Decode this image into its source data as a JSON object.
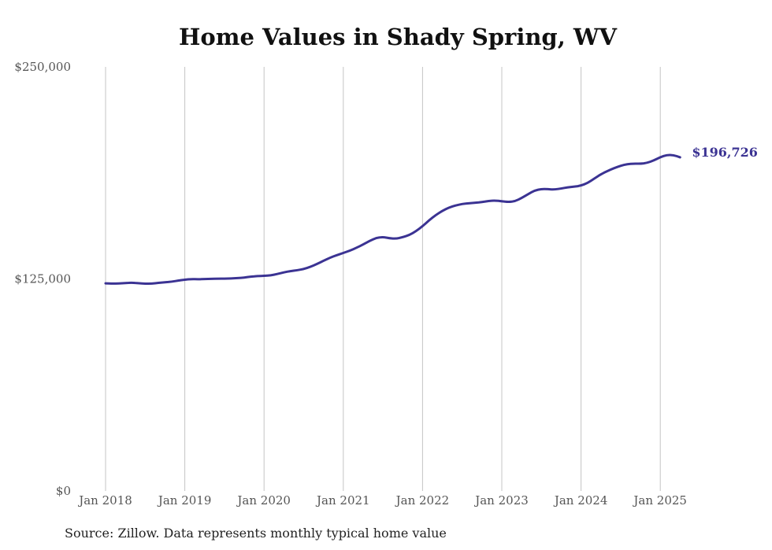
{
  "chart_data": {
    "type": "line",
    "title": "Home Values in Shady Spring, WV",
    "xlabel": "",
    "ylabel": "",
    "ylim": [
      0,
      250000
    ],
    "yticks": [
      0,
      125000,
      250000
    ],
    "ytick_labels": [
      "$0",
      "$125,000",
      "$250,000"
    ],
    "xticks": [
      "Jan 2018",
      "Jan 2019",
      "Jan 2020",
      "Jan 2021",
      "Jan 2022",
      "Jan 2023",
      "Jan 2024",
      "Jan 2025"
    ],
    "xlim": [
      "2018-01",
      "2025-05"
    ],
    "grid": "vertical",
    "line_color": "#3b3393",
    "series": [
      {
        "end_label": "$196,726",
        "points": [
          [
            "2018-01",
            122400
          ],
          [
            "2018-02",
            122200
          ],
          [
            "2018-03",
            122300
          ],
          [
            "2018-04",
            122600
          ],
          [
            "2018-05",
            122800
          ],
          [
            "2018-06",
            122500
          ],
          [
            "2018-07",
            122200
          ],
          [
            "2018-08",
            122200
          ],
          [
            "2018-09",
            122700
          ],
          [
            "2018-10",
            123000
          ],
          [
            "2018-11",
            123400
          ],
          [
            "2018-12",
            124000
          ],
          [
            "2019-01",
            124600
          ],
          [
            "2019-02",
            124900
          ],
          [
            "2019-03",
            124800
          ],
          [
            "2019-04",
            124900
          ],
          [
            "2019-05",
            125100
          ],
          [
            "2019-06",
            125200
          ],
          [
            "2019-07",
            125200
          ],
          [
            "2019-08",
            125300
          ],
          [
            "2019-09",
            125500
          ],
          [
            "2019-10",
            125800
          ],
          [
            "2019-11",
            126400
          ],
          [
            "2019-12",
            126700
          ],
          [
            "2020-01",
            126800
          ],
          [
            "2020-02",
            127100
          ],
          [
            "2020-03",
            127900
          ],
          [
            "2020-04",
            128900
          ],
          [
            "2020-05",
            129600
          ],
          [
            "2020-06",
            130100
          ],
          [
            "2020-07",
            130800
          ],
          [
            "2020-08",
            132100
          ],
          [
            "2020-09",
            133800
          ],
          [
            "2020-10",
            135700
          ],
          [
            "2020-11",
            137500
          ],
          [
            "2020-12",
            139000
          ],
          [
            "2021-01",
            140300
          ],
          [
            "2021-02",
            141700
          ],
          [
            "2021-03",
            143400
          ],
          [
            "2021-04",
            145300
          ],
          [
            "2021-05",
            147500
          ],
          [
            "2021-06",
            149200
          ],
          [
            "2021-07",
            149700
          ],
          [
            "2021-08",
            149000
          ],
          [
            "2021-09",
            148700
          ],
          [
            "2021-10",
            149600
          ],
          [
            "2021-11",
            150900
          ],
          [
            "2021-12",
            153100
          ],
          [
            "2022-01",
            156100
          ],
          [
            "2022-02",
            159600
          ],
          [
            "2022-03",
            162700
          ],
          [
            "2022-04",
            165100
          ],
          [
            "2022-05",
            167100
          ],
          [
            "2022-06",
            168300
          ],
          [
            "2022-07",
            169200
          ],
          [
            "2022-08",
            169600
          ],
          [
            "2022-09",
            169900
          ],
          [
            "2022-10",
            170300
          ],
          [
            "2022-11",
            171000
          ],
          [
            "2022-12",
            171200
          ],
          [
            "2023-01",
            170800
          ],
          [
            "2023-02",
            170300
          ],
          [
            "2023-03",
            170800
          ],
          [
            "2023-04",
            172700
          ],
          [
            "2023-05",
            175000
          ],
          [
            "2023-06",
            177200
          ],
          [
            "2023-07",
            178000
          ],
          [
            "2023-08",
            177900
          ],
          [
            "2023-09",
            177700
          ],
          [
            "2023-10",
            178300
          ],
          [
            "2023-11",
            179000
          ],
          [
            "2023-12",
            179400
          ],
          [
            "2024-01",
            180000
          ],
          [
            "2024-02",
            181600
          ],
          [
            "2024-03",
            184200
          ],
          [
            "2024-04",
            186700
          ],
          [
            "2024-05",
            188600
          ],
          [
            "2024-06",
            190300
          ],
          [
            "2024-07",
            191700
          ],
          [
            "2024-08",
            192700
          ],
          [
            "2024-09",
            193000
          ],
          [
            "2024-10",
            192900
          ],
          [
            "2024-11",
            193400
          ],
          [
            "2024-12",
            194800
          ],
          [
            "2025-01",
            196800
          ],
          [
            "2025-02",
            198100
          ],
          [
            "2025-03",
            198000
          ],
          [
            "2025-04",
            196726
          ]
        ]
      }
    ]
  },
  "source": "Source: Zillow. Data represents monthly typical home value"
}
